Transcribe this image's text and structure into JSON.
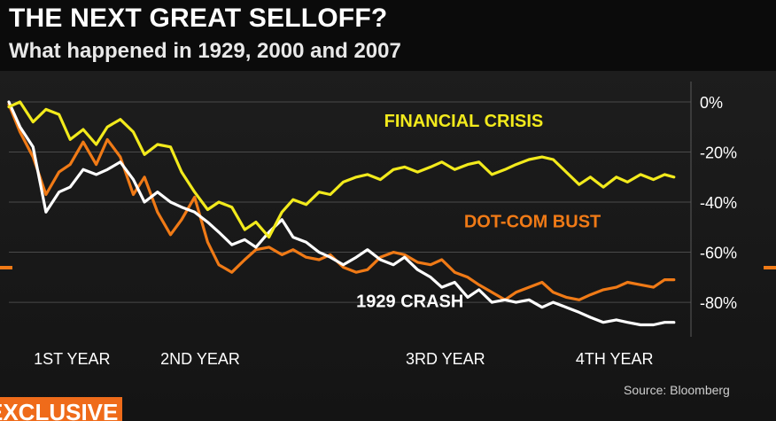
{
  "header": {
    "title": "THE NEXT GREAT SELLOFF?",
    "subtitle": "What happened in 1929, 2000 and 2007"
  },
  "footer": {
    "source": "Source: Bloomberg",
    "ticker_label": "EXCLUSIVE"
  },
  "chart_data": {
    "type": "line",
    "title": "THE NEXT GREAT SELLOFF?",
    "subtitle": "What happened in 1929, 2000 and 2007",
    "xlabel": "",
    "ylabel": "",
    "x_ticks": [
      "1ST YEAR",
      "2ND YEAR",
      "3RD YEAR",
      "4TH YEAR"
    ],
    "y_ticks": [
      "0%",
      "-20%",
      "-40%",
      "-60%",
      "-80%"
    ],
    "y_tick_values": [
      0,
      -20,
      -40,
      -60,
      -80
    ],
    "ylim": [
      -92,
      6
    ],
    "xlim": [
      0,
      3.6
    ],
    "grid": true,
    "colors": {
      "financial_crisis": "#f2ea1c",
      "dot_com_bust": "#f07a16",
      "crash_1929": "#ffffff",
      "grid": "#4a4a4a",
      "text": "#ffffff"
    },
    "series": [
      {
        "name": "FINANCIAL CRISIS",
        "color": "#f2ea1c",
        "x": [
          0,
          0.06,
          0.13,
          0.2,
          0.27,
          0.33,
          0.4,
          0.47,
          0.53,
          0.6,
          0.67,
          0.73,
          0.8,
          0.87,
          0.93,
          1.0,
          1.07,
          1.13,
          1.2,
          1.27,
          1.33,
          1.4,
          1.47,
          1.53,
          1.6,
          1.67,
          1.73,
          1.8,
          1.87,
          1.93,
          2.0,
          2.07,
          2.13,
          2.2,
          2.27,
          2.33,
          2.4,
          2.47,
          2.53,
          2.6,
          2.67,
          2.73,
          2.8,
          2.87,
          2.93,
          3.0,
          3.07,
          3.13,
          3.2,
          3.27,
          3.33,
          3.4,
          3.47,
          3.53,
          3.58
        ],
        "values": [
          -2,
          0,
          -8,
          -3,
          -5,
          -15,
          -11,
          -17,
          -10,
          -7,
          -12,
          -21,
          -17,
          -18,
          -28,
          -36,
          -43,
          -40,
          -42,
          -51,
          -48,
          -54,
          -44,
          -39,
          -41,
          -36,
          -37,
          -32,
          -30,
          -29,
          -31,
          -27,
          -26,
          -28,
          -26,
          -24,
          -27,
          -25,
          -24,
          -29,
          -27,
          -25,
          -23,
          -22,
          -23,
          -28,
          -33,
          -30,
          -34,
          -30,
          -32,
          -29,
          -31,
          -29,
          -30
        ]
      },
      {
        "name": "DOT-COM BUST",
        "color": "#f07a16",
        "x": [
          0,
          0.06,
          0.13,
          0.2,
          0.27,
          0.33,
          0.4,
          0.47,
          0.53,
          0.6,
          0.67,
          0.73,
          0.8,
          0.87,
          0.93,
          1.0,
          1.07,
          1.13,
          1.2,
          1.27,
          1.33,
          1.4,
          1.47,
          1.53,
          1.6,
          1.67,
          1.73,
          1.8,
          1.87,
          1.93,
          2.0,
          2.07,
          2.13,
          2.2,
          2.27,
          2.33,
          2.4,
          2.47,
          2.53,
          2.6,
          2.67,
          2.73,
          2.8,
          2.87,
          2.93,
          3.0,
          3.07,
          3.13,
          3.2,
          3.27,
          3.33,
          3.4,
          3.47,
          3.53,
          3.58
        ],
        "values": [
          -1,
          -12,
          -22,
          -37,
          -28,
          -25,
          -16,
          -25,
          -15,
          -22,
          -37,
          -30,
          -44,
          -53,
          -47,
          -38,
          -56,
          -65,
          -68,
          -63,
          -59,
          -58,
          -61,
          -59,
          -62,
          -63,
          -61,
          -66,
          -68,
          -67,
          -62,
          -60,
          -61,
          -64,
          -65,
          -63,
          -68,
          -70,
          -73,
          -76,
          -79,
          -76,
          -74,
          -72,
          -76,
          -78,
          -79,
          -77,
          -75,
          -74,
          -72,
          -73,
          -74,
          -71,
          -71
        ]
      },
      {
        "name": "1929 CRASH",
        "color": "#ffffff",
        "x": [
          0,
          0.06,
          0.13,
          0.2,
          0.27,
          0.33,
          0.4,
          0.47,
          0.53,
          0.6,
          0.67,
          0.73,
          0.8,
          0.87,
          0.93,
          1.0,
          1.07,
          1.13,
          1.2,
          1.27,
          1.33,
          1.4,
          1.47,
          1.53,
          1.6,
          1.67,
          1.73,
          1.8,
          1.87,
          1.93,
          2.0,
          2.07,
          2.13,
          2.2,
          2.27,
          2.33,
          2.4,
          2.47,
          2.53,
          2.6,
          2.67,
          2.73,
          2.8,
          2.87,
          2.93,
          3.0,
          3.07,
          3.13,
          3.2,
          3.27,
          3.33,
          3.4,
          3.47,
          3.53,
          3.58
        ],
        "values": [
          0,
          -10,
          -18,
          -44,
          -36,
          -34,
          -27,
          -29,
          -27,
          -24,
          -31,
          -40,
          -36,
          -40,
          -42,
          -44,
          -48,
          -52,
          -57,
          -55,
          -58,
          -52,
          -47,
          -54,
          -56,
          -60,
          -62,
          -65,
          -62,
          -59,
          -63,
          -65,
          -62,
          -67,
          -70,
          -74,
          -72,
          -78,
          -75,
          -80,
          -79,
          -80,
          -79,
          -82,
          -80,
          -82,
          -84,
          -86,
          -88,
          -87,
          -88,
          -89,
          -89,
          -88,
          -88
        ]
      }
    ],
    "annotations": [
      {
        "text": "FINANCIAL CRISIS",
        "series": "FINANCIAL CRISIS"
      },
      {
        "text": "DOT-COM BUST",
        "series": "DOT-COM BUST"
      },
      {
        "text": "1929 CRASH",
        "series": "1929 CRASH"
      }
    ]
  }
}
